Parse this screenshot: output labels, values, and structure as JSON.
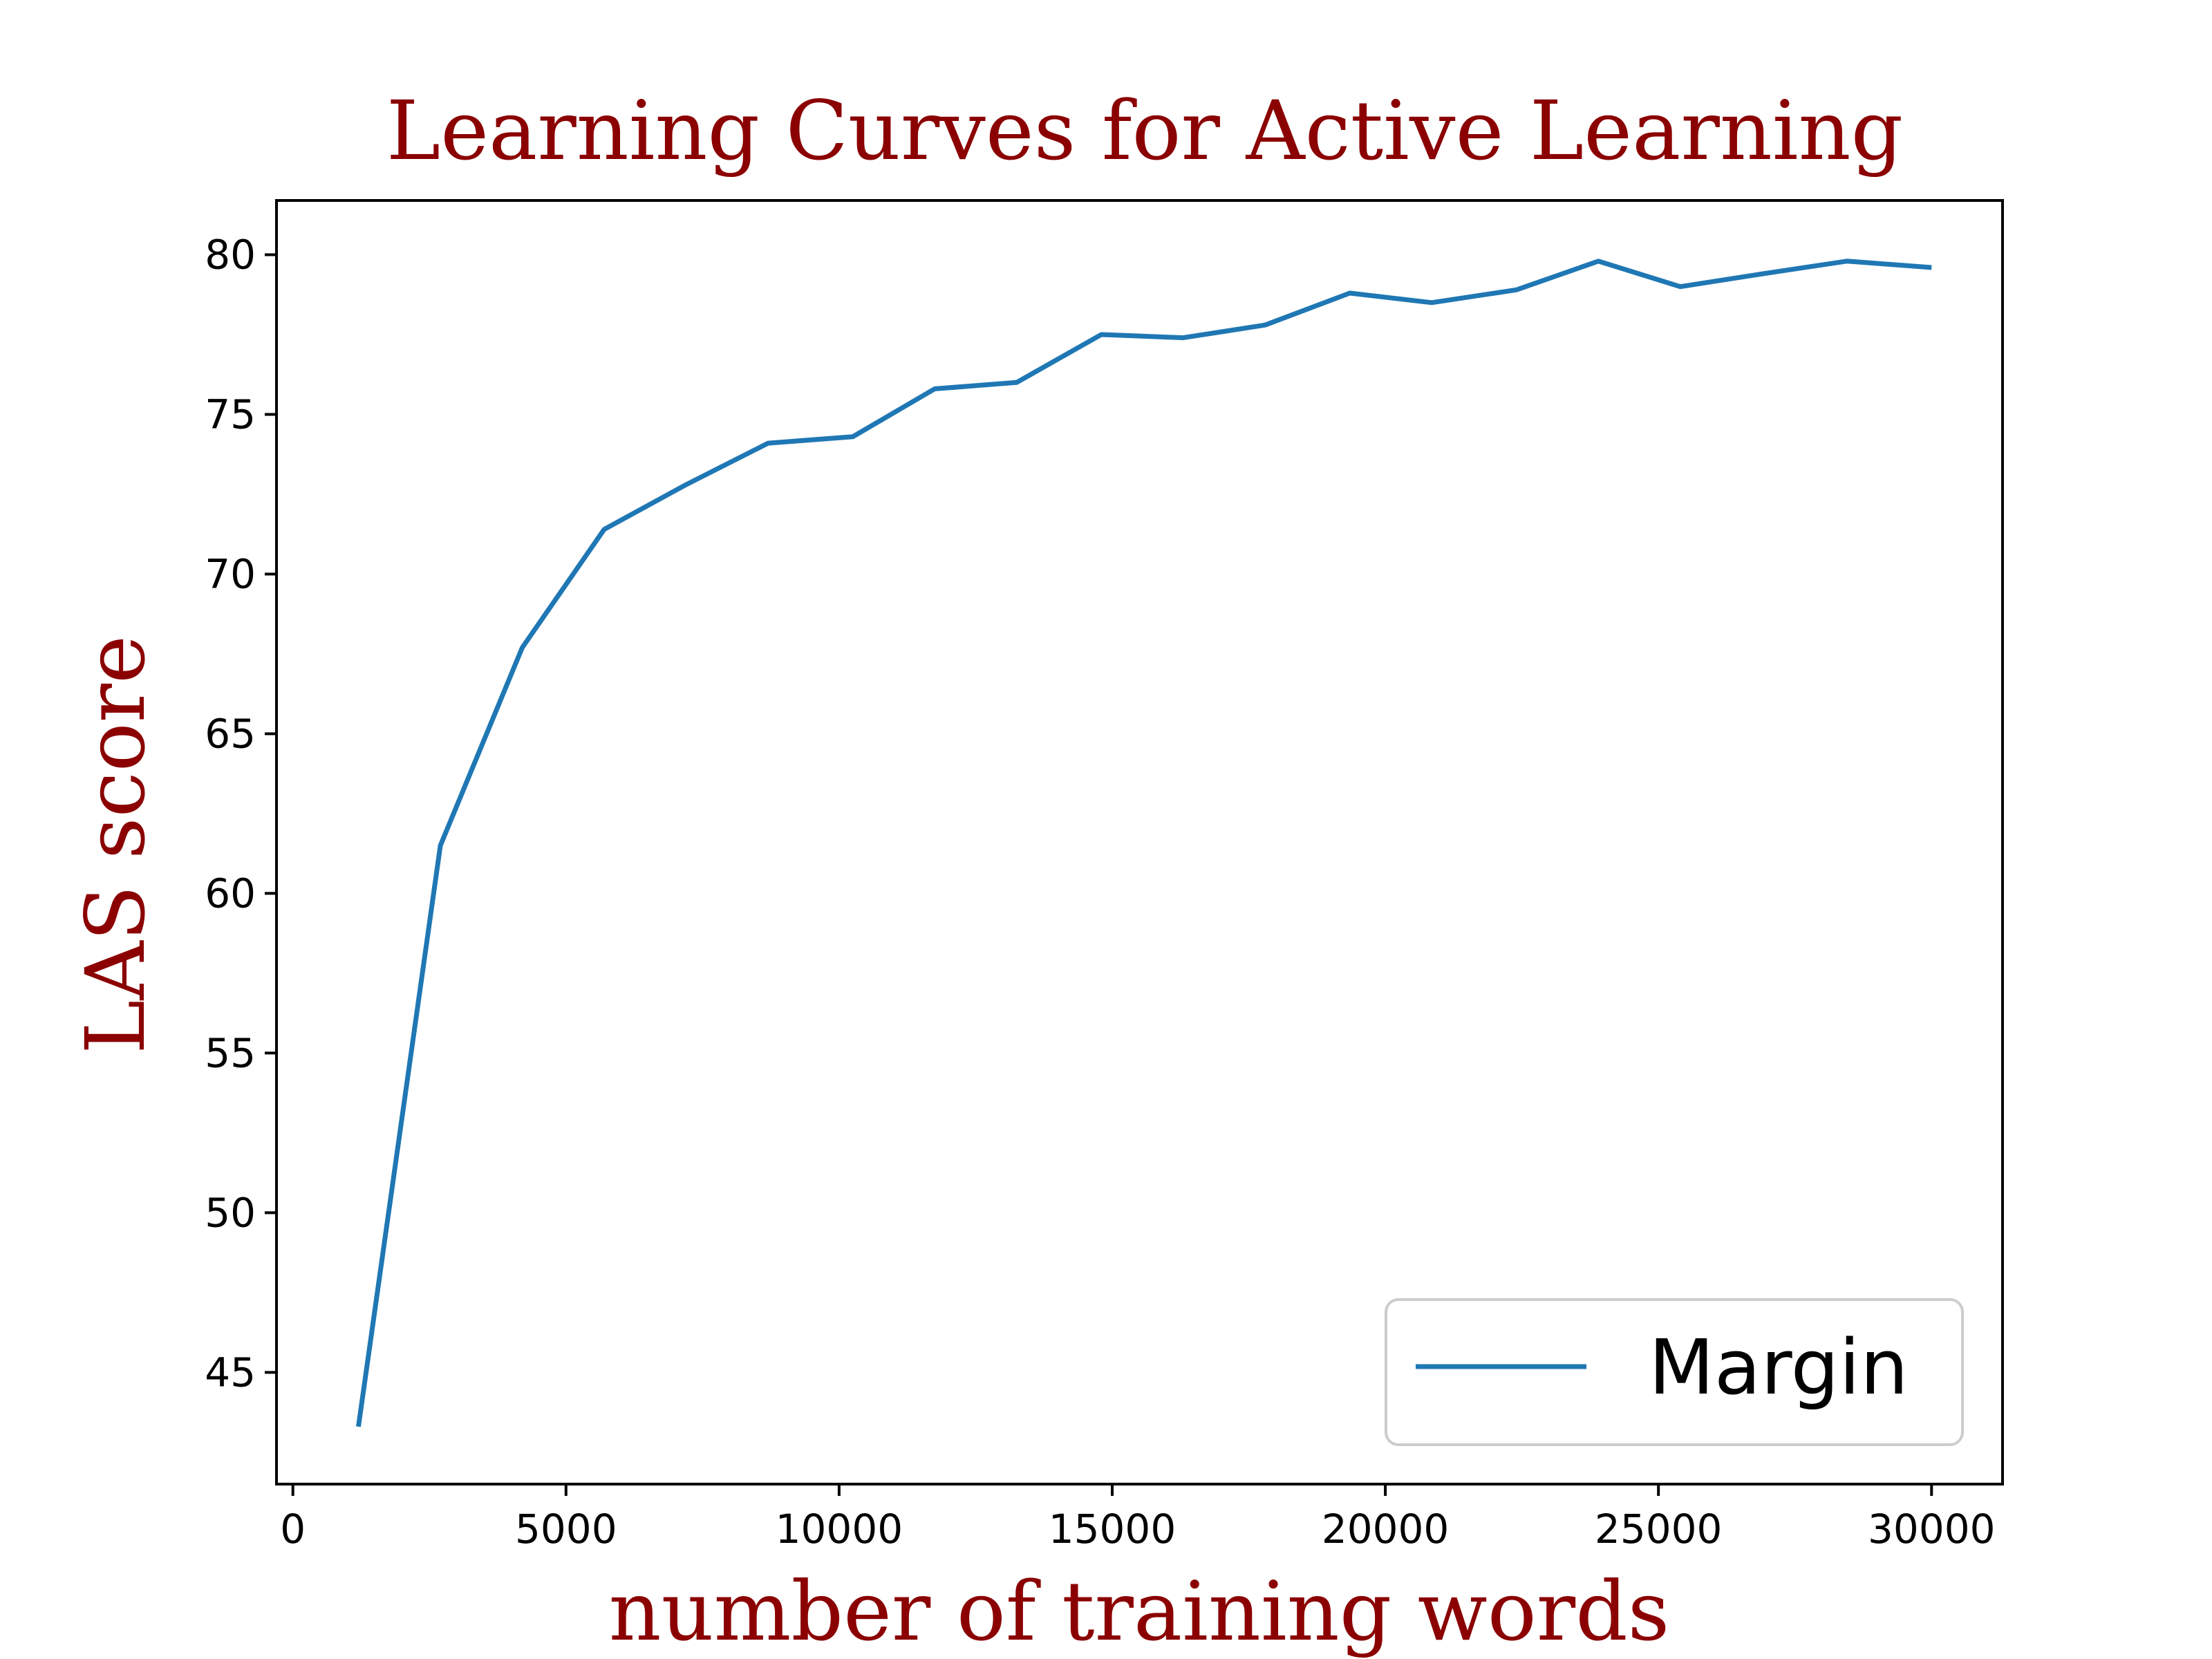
{
  "chart_data": {
    "type": "line",
    "title": "Learning Curves for Active Learning",
    "xlabel": "number of training words",
    "ylabel": "LAS score",
    "xlim": [
      -300,
      31300
    ],
    "ylim": [
      41.5,
      81.7
    ],
    "xticks": [
      0,
      5000,
      10000,
      15000,
      20000,
      25000,
      30000
    ],
    "yticks": [
      45,
      50,
      55,
      60,
      65,
      70,
      75,
      80
    ],
    "grid": false,
    "legend_position": "lower-right",
    "title_color": "#8b0000",
    "label_color": "#8b0000",
    "series": [
      {
        "name": "Margin",
        "color": "#1f77b4",
        "x": [
          1200,
          2700,
          4200,
          5700,
          7200,
          8700,
          10250,
          11750,
          13250,
          14800,
          16300,
          17800,
          19350,
          20850,
          22400,
          23900,
          25400,
          26900,
          28450,
          30000
        ],
        "y": [
          43.3,
          61.5,
          67.7,
          71.4,
          72.8,
          74.1,
          74.3,
          75.8,
          76.0,
          77.5,
          77.4,
          77.8,
          78.8,
          78.5,
          78.9,
          79.8,
          79.0,
          79.4,
          79.8,
          79.6
        ]
      }
    ]
  }
}
